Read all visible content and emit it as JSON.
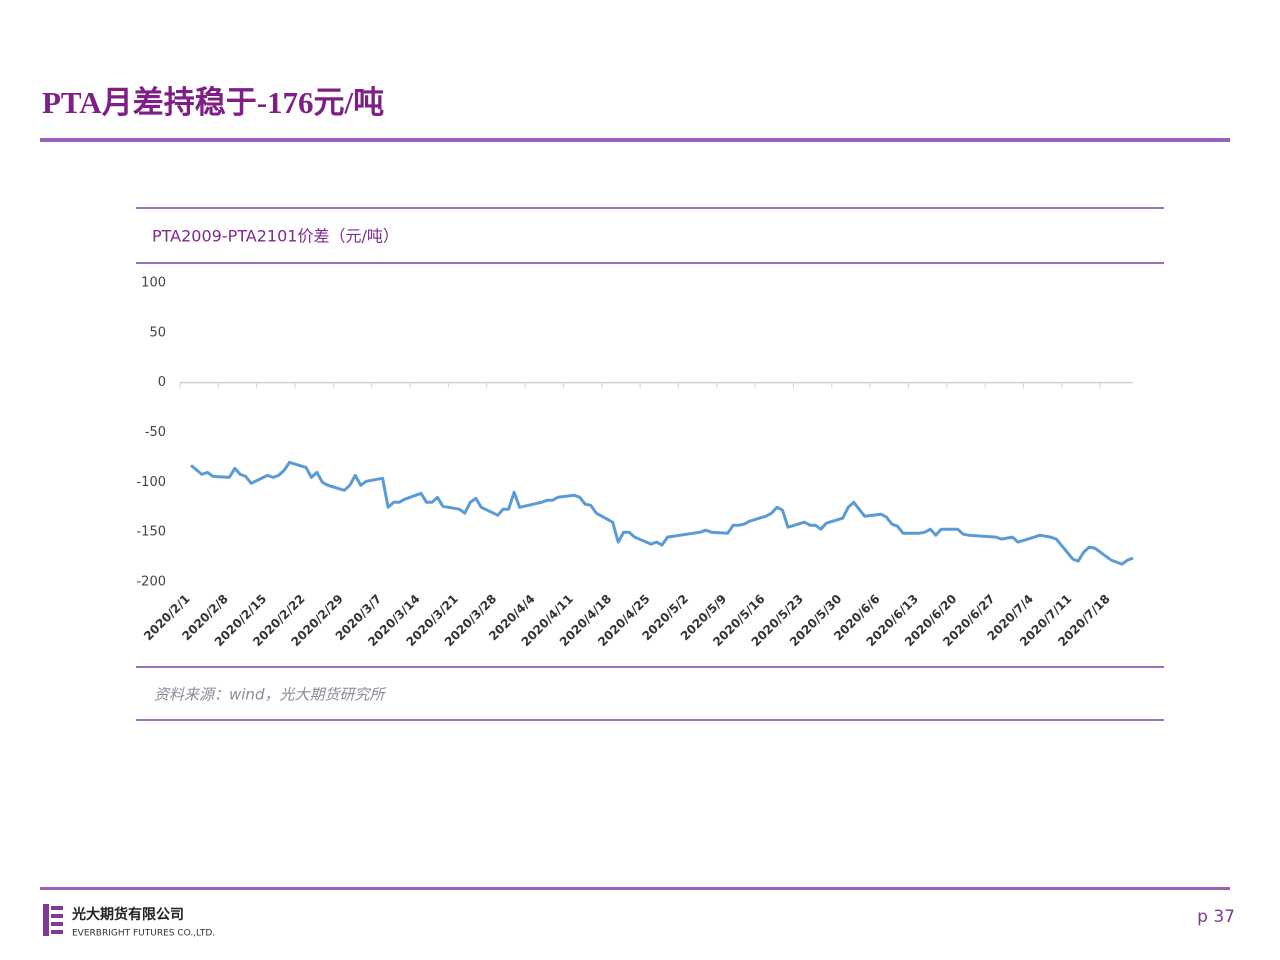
{
  "slide": {
    "title": "PTA月差持稳于-176元/吨",
    "source": "资料来源：wind，光大期货研究所",
    "company": "光大期货有限公司",
    "company_en": "EVERBRIGHT FUTURES CO.,LTD.",
    "page": "p 37"
  },
  "chart_data": {
    "type": "line",
    "title": "PTA2009-PTA2101价差（元/吨）",
    "x": [
      "2020/2/3",
      "2020/2/5",
      "2020/2/6",
      "2020/2/7",
      "2020/2/10",
      "2020/2/11",
      "2020/2/12",
      "2020/2/13",
      "2020/2/14",
      "2020/2/17",
      "2020/2/18",
      "2020/2/19",
      "2020/2/20",
      "2020/2/21",
      "2020/2/24",
      "2020/2/25",
      "2020/2/26",
      "2020/2/27",
      "2020/2/28",
      "2020/3/2",
      "2020/3/3",
      "2020/3/4",
      "2020/3/5",
      "2020/3/6",
      "2020/3/9",
      "2020/3/10",
      "2020/3/11",
      "2020/3/12",
      "2020/3/13",
      "2020/3/16",
      "2020/3/17",
      "2020/3/18",
      "2020/3/19",
      "2020/3/20",
      "2020/3/23",
      "2020/3/24",
      "2020/3/25",
      "2020/3/26",
      "2020/3/27",
      "2020/3/30",
      "2020/3/31",
      "2020/4/1",
      "2020/4/2",
      "2020/4/3",
      "2020/4/7",
      "2020/4/8",
      "2020/4/9",
      "2020/4/10",
      "2020/4/13",
      "2020/4/14",
      "2020/4/15",
      "2020/4/16",
      "2020/4/17",
      "2020/4/20",
      "2020/4/21",
      "2020/4/22",
      "2020/4/23",
      "2020/4/24",
      "2020/4/27",
      "2020/4/28",
      "2020/4/29",
      "2020/4/30",
      "2020/5/6",
      "2020/5/7",
      "2020/5/8",
      "2020/5/11",
      "2020/5/12",
      "2020/5/13",
      "2020/5/14",
      "2020/5/15",
      "2020/5/18",
      "2020/5/19",
      "2020/5/20",
      "2020/5/21",
      "2020/5/22",
      "2020/5/25",
      "2020/5/26",
      "2020/5/27",
      "2020/5/28",
      "2020/5/29",
      "2020/6/1",
      "2020/6/2",
      "2020/6/3",
      "2020/6/4",
      "2020/6/5",
      "2020/6/8",
      "2020/6/9",
      "2020/6/10",
      "2020/6/11",
      "2020/6/12",
      "2020/6/15",
      "2020/6/16",
      "2020/6/17",
      "2020/6/18",
      "2020/6/19",
      "2020/6/22",
      "2020/6/23",
      "2020/6/24",
      "2020/6/29",
      "2020/6/30",
      "2020/7/1",
      "2020/7/2",
      "2020/7/3",
      "2020/7/6",
      "2020/7/7",
      "2020/7/8",
      "2020/7/9",
      "2020/7/10",
      "2020/7/13",
      "2020/7/14",
      "2020/7/15",
      "2020/7/16",
      "2020/7/17",
      "2020/7/20",
      "2020/7/21",
      "2020/7/22",
      "2020/7/23",
      "2020/7/24"
    ],
    "series": [
      {
        "name": "PTA2009-PTA2101价差",
        "color": "#5b9bd5",
        "values": [
          -83,
          -92,
          -90,
          -94,
          -95,
          -86,
          -92,
          -94,
          -101,
          -93,
          -95,
          -93,
          -88,
          -80,
          -85,
          -95,
          -90,
          -100,
          -103,
          -108,
          -103,
          -93,
          -103,
          -99,
          -96,
          -125,
          -120,
          -120,
          -117,
          -111,
          -120,
          -120,
          -115,
          -124,
          -127,
          -131,
          -120,
          -116,
          -125,
          -133,
          -127,
          -127,
          -110,
          -125,
          -120,
          -118,
          -118,
          -115,
          -113,
          -115,
          -122,
          -123,
          -131,
          -140,
          -160,
          -150,
          -150,
          -155,
          -162,
          -160,
          -163,
          -155,
          -150,
          -148,
          -150,
          -151,
          -143,
          -143,
          -142,
          -139,
          -134,
          -131,
          -125,
          -128,
          -145,
          -140,
          -143,
          -143,
          -147,
          -141,
          -136,
          -125,
          -120,
          -127,
          -134,
          -132,
          -135,
          -142,
          -144,
          -151,
          -151,
          -150,
          -147,
          -153,
          -147,
          -147,
          -152,
          -153,
          -155,
          -157,
          -156,
          -155,
          -160,
          -155,
          -153,
          -154,
          -155,
          -157,
          -177,
          -179,
          -170,
          -165,
          -166,
          -178,
          -180,
          -182,
          -178,
          -176
        ]
      }
    ],
    "xlim": [
      "2020/2/1",
      "2020/7/24"
    ],
    "xticks": [
      "2020/2/1",
      "2020/2/8",
      "2020/2/15",
      "2020/2/22",
      "2020/2/29",
      "2020/3/7",
      "2020/3/14",
      "2020/3/21",
      "2020/3/28",
      "2020/4/4",
      "2020/4/11",
      "2020/4/18",
      "2020/4/25",
      "2020/5/2",
      "2020/5/9",
      "2020/5/16",
      "2020/5/23",
      "2020/5/30",
      "2020/6/6",
      "2020/6/13",
      "2020/6/20",
      "2020/6/27",
      "2020/7/4",
      "2020/7/11",
      "2020/7/18"
    ],
    "ylim": [
      -200,
      100
    ],
    "yticks": [
      100,
      50,
      0,
      -50,
      -100,
      -150,
      -200
    ],
    "grid": false
  }
}
